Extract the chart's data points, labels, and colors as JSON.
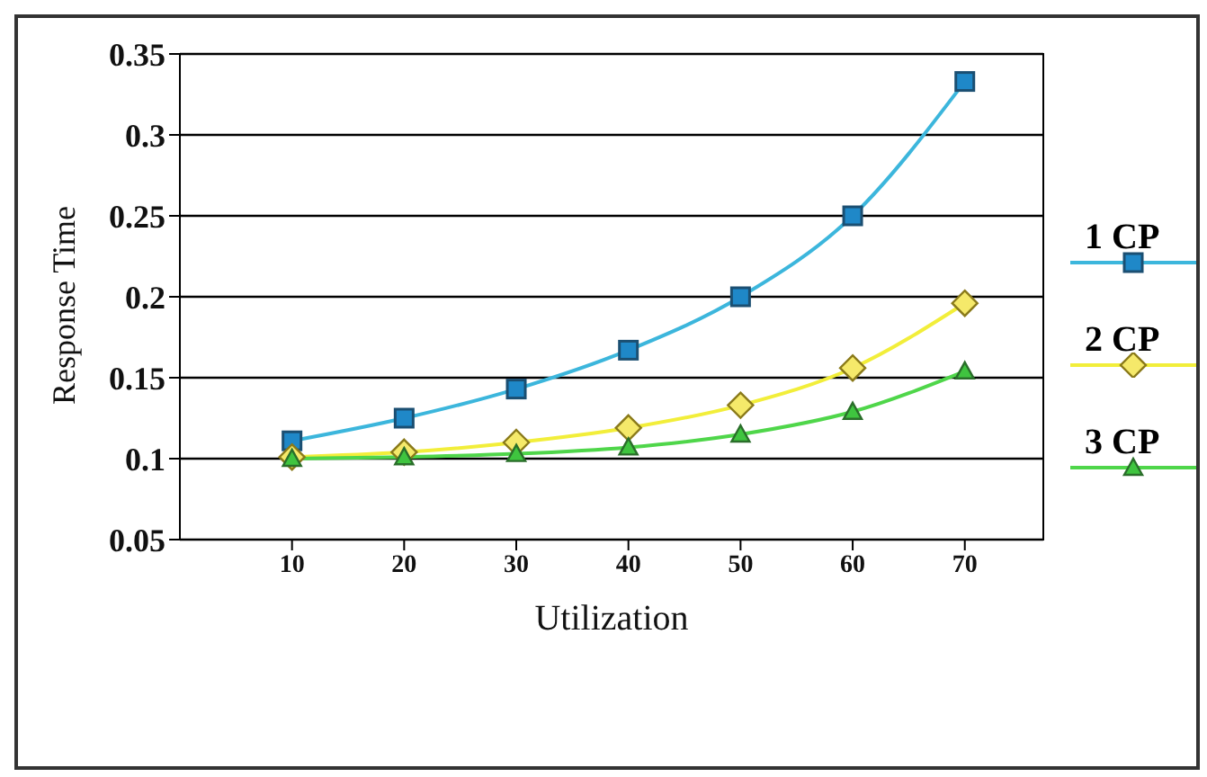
{
  "chart_data": {
    "type": "line",
    "xlabel": "Utilization",
    "ylabel": "Response Time",
    "x": [
      10,
      20,
      30,
      40,
      50,
      60,
      70
    ],
    "series": [
      {
        "name": "1 CP",
        "color": "#3cb6dc",
        "marker": "square",
        "values": [
          0.111,
          0.125,
          0.143,
          0.167,
          0.2,
          0.25,
          0.333
        ]
      },
      {
        "name": "2 CP",
        "color": "#f2ee3a",
        "marker": "diamond",
        "values": [
          0.101,
          0.104,
          0.11,
          0.119,
          0.133,
          0.156,
          0.196
        ]
      },
      {
        "name": "3 CP",
        "color": "#4fd64a",
        "marker": "triangle",
        "values": [
          0.1,
          0.101,
          0.103,
          0.107,
          0.115,
          0.129,
          0.154
        ]
      }
    ],
    "xlim": [
      0,
      77
    ],
    "xticks": [
      10,
      20,
      30,
      40,
      50,
      60,
      70
    ],
    "ylim": [
      0.05,
      0.35
    ],
    "yticks": [
      0.05,
      0.1,
      0.15,
      0.2,
      0.25,
      0.3,
      0.35
    ],
    "grid": "y",
    "legend": "right",
    "line_style": "solid"
  }
}
